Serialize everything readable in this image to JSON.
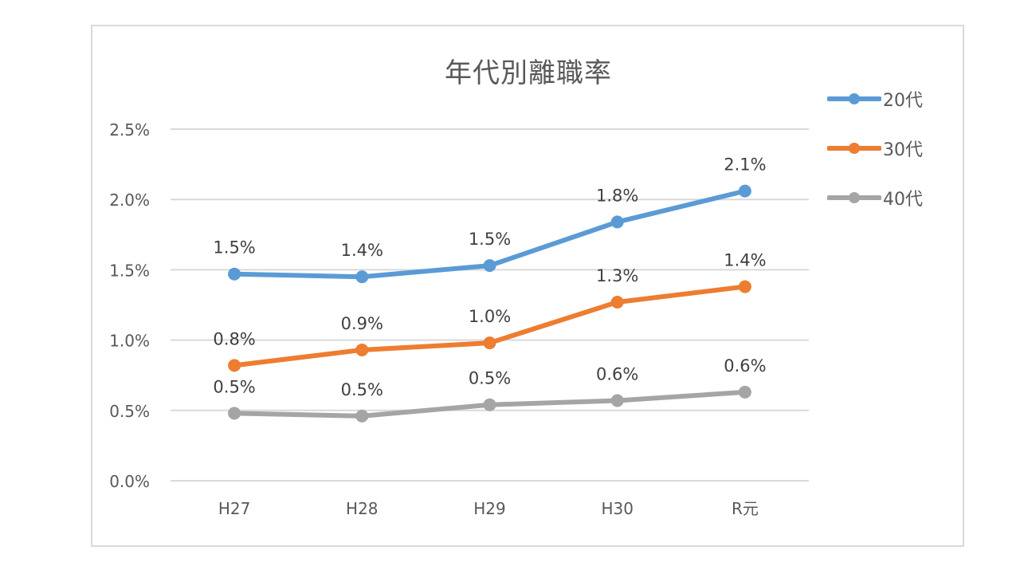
{
  "chart_data": {
    "type": "line",
    "title": "年代別離職率",
    "xlabel": "",
    "ylabel": "",
    "categories": [
      "H27",
      "H28",
      "H29",
      "H30",
      "R元"
    ],
    "series": [
      {
        "name": "20代",
        "color": "#5b9bd5",
        "values": [
          1.47,
          1.45,
          1.53,
          1.84,
          2.06
        ],
        "labels": [
          "1.5%",
          "1.4%",
          "1.5%",
          "1.8%",
          "2.1%"
        ]
      },
      {
        "name": "30代",
        "color": "#ed7d31",
        "values": [
          0.82,
          0.93,
          0.98,
          1.27,
          1.38
        ],
        "labels": [
          "0.8%",
          "0.9%",
          "1.0%",
          "1.3%",
          "1.4%"
        ]
      },
      {
        "name": "40代",
        "color": "#a5a5a5",
        "values": [
          0.48,
          0.46,
          0.54,
          0.57,
          0.63
        ],
        "labels": [
          "0.5%",
          "0.5%",
          "0.5%",
          "0.6%",
          "0.6%"
        ]
      }
    ],
    "yticks": [
      "0.0%",
      "0.5%",
      "1.0%",
      "1.5%",
      "2.0%",
      "2.5%"
    ],
    "ylim": [
      0,
      2.5
    ],
    "grid": true,
    "legend_position": "right",
    "data_labels": true
  },
  "legend": {
    "items": [
      {
        "label": "20代",
        "color": "#5b9bd5"
      },
      {
        "label": "30代",
        "color": "#ed7d31"
      },
      {
        "label": "40代",
        "color": "#a5a5a5"
      }
    ]
  }
}
